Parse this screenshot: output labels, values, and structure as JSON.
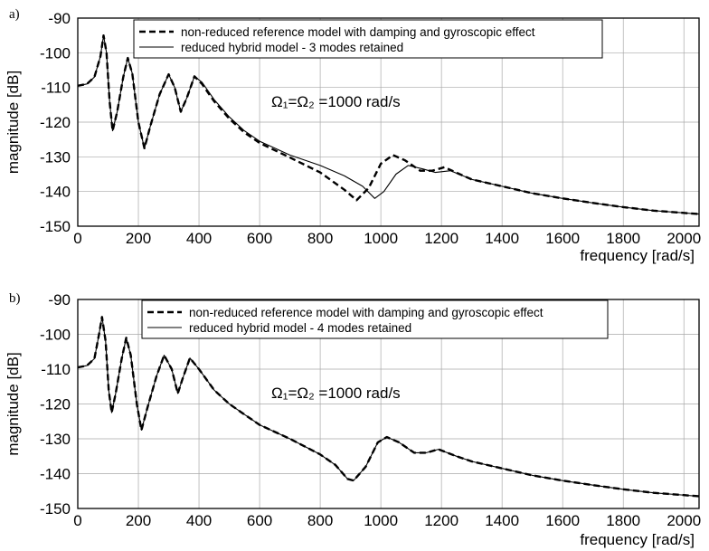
{
  "chart_data": [
    {
      "panel_label": "a)",
      "type": "line",
      "xlabel": "frequency [rad/s]",
      "ylabel": "magnitude [dB]",
      "xlim": [
        0,
        2050
      ],
      "ylim": [
        -150,
        -90
      ],
      "xticks": [
        "0",
        "200",
        "400",
        "600",
        "800",
        "1000",
        "1200",
        "1400",
        "1600",
        "1800",
        "2000"
      ],
      "yticks": [
        "-90",
        "-100",
        "-110",
        "-120",
        "-130",
        "-140",
        "-150"
      ],
      "grid": true,
      "legend": "top",
      "annotation": "Ω₁=Ω₂ =1000 rad/s",
      "series": [
        {
          "name": "non-reduced reference model with damping and gyroscopic effect",
          "style": "dashed",
          "points": [
            [
              0,
              -109.5
            ],
            [
              30,
              -109
            ],
            [
              55,
              -107
            ],
            [
              75,
              -101
            ],
            [
              85,
              -95
            ],
            [
              95,
              -100
            ],
            [
              105,
              -114
            ],
            [
              115,
              -122.5
            ],
            [
              130,
              -117
            ],
            [
              150,
              -107
            ],
            [
              165,
              -101.5
            ],
            [
              180,
              -106
            ],
            [
              200,
              -120
            ],
            [
              220,
              -127.5
            ],
            [
              240,
              -121
            ],
            [
              270,
              -112
            ],
            [
              300,
              -106.2
            ],
            [
              320,
              -110
            ],
            [
              340,
              -117
            ],
            [
              360,
              -113
            ],
            [
              385,
              -106.8
            ],
            [
              410,
              -109
            ],
            [
              450,
              -114
            ],
            [
              500,
              -119
            ],
            [
              550,
              -123
            ],
            [
              600,
              -126
            ],
            [
              700,
              -130.2
            ],
            [
              800,
              -134.5
            ],
            [
              880,
              -139.5
            ],
            [
              920,
              -142.5
            ],
            [
              960,
              -139
            ],
            [
              1000,
              -132
            ],
            [
              1040,
              -129.5
            ],
            [
              1080,
              -131
            ],
            [
              1130,
              -134
            ],
            [
              1170,
              -134
            ],
            [
              1210,
              -133
            ],
            [
              1260,
              -135
            ],
            [
              1300,
              -136.5
            ],
            [
              1400,
              -138.5
            ],
            [
              1500,
              -140.5
            ],
            [
              1600,
              -142
            ],
            [
              1700,
              -143.3
            ],
            [
              1800,
              -144.5
            ],
            [
              1900,
              -145.5
            ],
            [
              2050,
              -146.5
            ]
          ]
        },
        {
          "name": "reduced hybrid model - 3 modes retained",
          "style": "solid",
          "points": [
            [
              0,
              -109.5
            ],
            [
              30,
              -109
            ],
            [
              55,
              -107
            ],
            [
              75,
              -101
            ],
            [
              85,
              -95
            ],
            [
              95,
              -100
            ],
            [
              105,
              -114
            ],
            [
              115,
              -122.5
            ],
            [
              130,
              -117
            ],
            [
              150,
              -107
            ],
            [
              165,
              -101.5
            ],
            [
              180,
              -106
            ],
            [
              200,
              -120
            ],
            [
              220,
              -127.5
            ],
            [
              240,
              -121
            ],
            [
              270,
              -112
            ],
            [
              300,
              -106.2
            ],
            [
              320,
              -110
            ],
            [
              340,
              -117
            ],
            [
              360,
              -113
            ],
            [
              385,
              -106.8
            ],
            [
              410,
              -108.5
            ],
            [
              450,
              -113.5
            ],
            [
              500,
              -118.5
            ],
            [
              550,
              -122.5
            ],
            [
              600,
              -125.5
            ],
            [
              700,
              -129.5
            ],
            [
              800,
              -132.5
            ],
            [
              880,
              -135.5
            ],
            [
              940,
              -138.5
            ],
            [
              980,
              -142
            ],
            [
              1010,
              -140
            ],
            [
              1050,
              -135
            ],
            [
              1090,
              -132.5
            ],
            [
              1140,
              -133.5
            ],
            [
              1180,
              -134.5
            ],
            [
              1230,
              -134
            ],
            [
              1300,
              -136.5
            ],
            [
              1400,
              -138.5
            ],
            [
              1500,
              -140.5
            ],
            [
              1600,
              -142
            ],
            [
              1700,
              -143.3
            ],
            [
              1800,
              -144.5
            ],
            [
              1900,
              -145.5
            ],
            [
              2050,
              -146.5
            ]
          ]
        }
      ]
    },
    {
      "panel_label": "b)",
      "type": "line",
      "xlabel": "frequency [rad/s]",
      "ylabel": "magnitude [dB]",
      "xlim": [
        0,
        2050
      ],
      "ylim": [
        -150,
        -90
      ],
      "xticks": [
        "0",
        "200",
        "400",
        "600",
        "800",
        "1000",
        "1200",
        "1400",
        "1600",
        "1800",
        "2000"
      ],
      "yticks": [
        "-90",
        "-100",
        "-110",
        "-120",
        "-130",
        "-140",
        "-150"
      ],
      "grid": true,
      "legend": "top",
      "annotation": "Ω₁=Ω₂ =1000 rad/s",
      "series": [
        {
          "name": "non-reduced reference model with damping and gyroscopic effect",
          "style": "dashed",
          "points": [
            [
              0,
              -109.5
            ],
            [
              30,
              -109
            ],
            [
              55,
              -107
            ],
            [
              70,
              -100
            ],
            [
              80,
              -95
            ],
            [
              92,
              -102
            ],
            [
              102,
              -116
            ],
            [
              112,
              -122.5
            ],
            [
              125,
              -117
            ],
            [
              145,
              -107
            ],
            [
              160,
              -101
            ],
            [
              175,
              -106
            ],
            [
              195,
              -120
            ],
            [
              210,
              -127.5
            ],
            [
              230,
              -121
            ],
            [
              260,
              -112
            ],
            [
              285,
              -106
            ],
            [
              310,
              -110
            ],
            [
              330,
              -117
            ],
            [
              345,
              -113
            ],
            [
              370,
              -106.8
            ],
            [
              400,
              -110
            ],
            [
              450,
              -116
            ],
            [
              500,
              -120
            ],
            [
              550,
              -123
            ],
            [
              600,
              -126
            ],
            [
              700,
              -130
            ],
            [
              800,
              -134.5
            ],
            [
              850,
              -137.5
            ],
            [
              890,
              -141.5
            ],
            [
              910,
              -142
            ],
            [
              950,
              -138
            ],
            [
              990,
              -131
            ],
            [
              1020,
              -129.5
            ],
            [
              1060,
              -131
            ],
            [
              1110,
              -134
            ],
            [
              1150,
              -134
            ],
            [
              1190,
              -133
            ],
            [
              1250,
              -135
            ],
            [
              1300,
              -136.5
            ],
            [
              1400,
              -138.5
            ],
            [
              1500,
              -140.5
            ],
            [
              1600,
              -142
            ],
            [
              1700,
              -143.3
            ],
            [
              1800,
              -144.5
            ],
            [
              1900,
              -145.5
            ],
            [
              2050,
              -146.5
            ]
          ]
        },
        {
          "name": "reduced hybrid model - 4 modes retained",
          "style": "solid",
          "points": [
            [
              0,
              -109.5
            ],
            [
              30,
              -109
            ],
            [
              55,
              -107
            ],
            [
              70,
              -100
            ],
            [
              80,
              -95
            ],
            [
              92,
              -102
            ],
            [
              102,
              -116
            ],
            [
              112,
              -122.5
            ],
            [
              125,
              -117
            ],
            [
              145,
              -107
            ],
            [
              160,
              -101
            ],
            [
              175,
              -106
            ],
            [
              195,
              -120
            ],
            [
              210,
              -127.5
            ],
            [
              230,
              -121
            ],
            [
              260,
              -112
            ],
            [
              285,
              -106
            ],
            [
              310,
              -110
            ],
            [
              330,
              -117
            ],
            [
              345,
              -113
            ],
            [
              370,
              -106.8
            ],
            [
              400,
              -110
            ],
            [
              450,
              -116
            ],
            [
              500,
              -120
            ],
            [
              550,
              -123
            ],
            [
              600,
              -126
            ],
            [
              700,
              -130
            ],
            [
              800,
              -134.5
            ],
            [
              850,
              -137.5
            ],
            [
              890,
              -141.5
            ],
            [
              910,
              -142
            ],
            [
              950,
              -138
            ],
            [
              990,
              -131
            ],
            [
              1020,
              -129.5
            ],
            [
              1060,
              -131
            ],
            [
              1110,
              -134
            ],
            [
              1150,
              -134
            ],
            [
              1190,
              -133
            ],
            [
              1250,
              -135
            ],
            [
              1300,
              -136.5
            ],
            [
              1400,
              -138.5
            ],
            [
              1500,
              -140.5
            ],
            [
              1600,
              -142
            ],
            [
              1700,
              -143.3
            ],
            [
              1800,
              -144.5
            ],
            [
              1900,
              -145.5
            ],
            [
              2050,
              -146.5
            ]
          ]
        }
      ]
    }
  ]
}
